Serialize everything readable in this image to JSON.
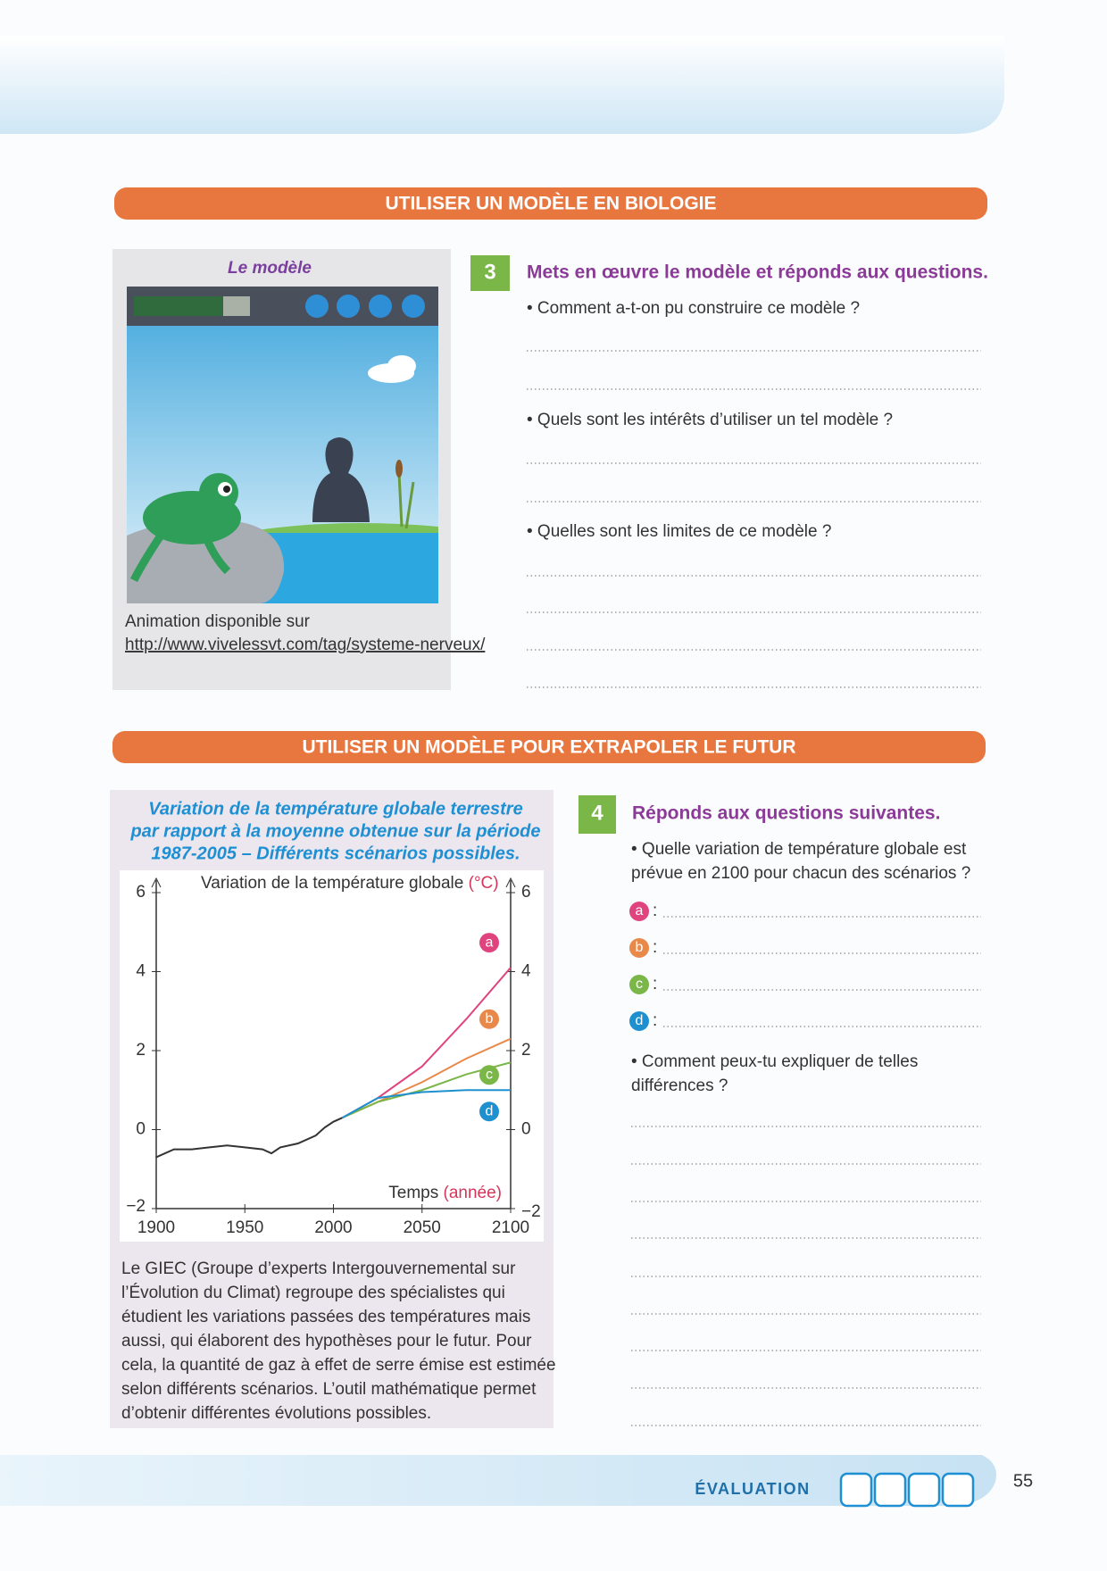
{
  "section1": {
    "title": "UTILISER UN MODÈLE EN BIOLOGIE",
    "model_caption": "Le modèle",
    "animation_text": "Animation disponible sur",
    "animation_url": "http://www.vivelessvt.com/tag/systeme-nerveux/"
  },
  "exercise3": {
    "number": "3",
    "title": "Mets en œuvre le modèle et réponds aux questions.",
    "questions": [
      "• Comment a-t-on pu construire ce modèle ?",
      "• Quels sont les intérêts d’utiliser un tel modèle ?",
      "• Quelles sont les limites de ce modèle ?"
    ]
  },
  "section2": {
    "title": "UTILISER UN MODÈLE POUR EXTRAPOLER LE FUTUR"
  },
  "figure": {
    "title_lines": [
      "Variation de la température globale terrestre",
      "par rapport à la moyenne obtenue sur la période",
      "1987-2005 – Différents scénarios possibles."
    ],
    "chart": {
      "type": "line",
      "y_label": "Variation de la température globale",
      "y_unit": "(°C)",
      "x_label": "Temps",
      "x_unit": "(année)",
      "xlim": [
        1900,
        2100
      ],
      "xticks": [
        1900,
        1950,
        2000,
        2050,
        2100
      ],
      "ylim": [
        -2,
        6
      ],
      "yticks": [
        {
          "value": -2,
          "label": "−2"
        },
        0,
        2,
        4,
        6
      ],
      "series": [
        {
          "color": "#333333",
          "x": [
            1900,
            1910,
            1920,
            1930,
            1940,
            1950,
            1960,
            1965,
            1970,
            1980,
            1990,
            1995,
            2000,
            2005
          ],
          "values": [
            -0.7,
            -0.5,
            -0.5,
            -0.45,
            -0.4,
            -0.45,
            -0.5,
            -0.6,
            -0.45,
            -0.35,
            -0.15,
            0.05,
            0.2,
            0.3
          ]
        },
        {
          "name": "a",
          "color": "#e0447e",
          "x": [
            2005,
            2025,
            2050,
            2075,
            2100
          ],
          "values": [
            0.3,
            0.8,
            1.6,
            2.8,
            4.1
          ]
        },
        {
          "name": "b",
          "color": "#e8894a",
          "x": [
            2005,
            2025,
            2050,
            2075,
            2100
          ],
          "values": [
            0.3,
            0.7,
            1.2,
            1.8,
            2.3
          ]
        },
        {
          "name": "c",
          "color": "#7ab648",
          "x": [
            2005,
            2025,
            2050,
            2075,
            2100
          ],
          "values": [
            0.3,
            0.7,
            1.0,
            1.4,
            1.7
          ]
        },
        {
          "name": "d",
          "color": "#1e90d0",
          "x": [
            2005,
            2025,
            2050,
            2075,
            2100
          ],
          "values": [
            0.3,
            0.8,
            0.95,
            1.0,
            1.0
          ]
        }
      ]
    },
    "paragraph_lines": [
      "Le GIEC (Groupe d’experts Intergouvernemental sur",
      "l’Évolution du Climat) regroupe des spécialistes qui",
      "étudient les variations passées des températures mais",
      "aussi, qui élaborent des hypothèses pour le futur. Pour",
      "cela, la quantité de gaz à effet de serre émise est estimée",
      "selon différents scénarios. L’outil mathématique permet",
      "d’obtenir différentes évolutions possibles."
    ]
  },
  "exercise4": {
    "number": "4",
    "title": "Réponds aux questions suivantes.",
    "question1_lines": [
      "• Quelle variation de température globale est",
      "prévue en 2100 pour chacun des scénarios ?"
    ],
    "answer_separator": ":",
    "question2_lines": [
      "• Comment peux-tu expliquer de telles",
      "différences ?"
    ]
  },
  "footer": {
    "label": "ÉVALUATION",
    "page_number": "55"
  }
}
